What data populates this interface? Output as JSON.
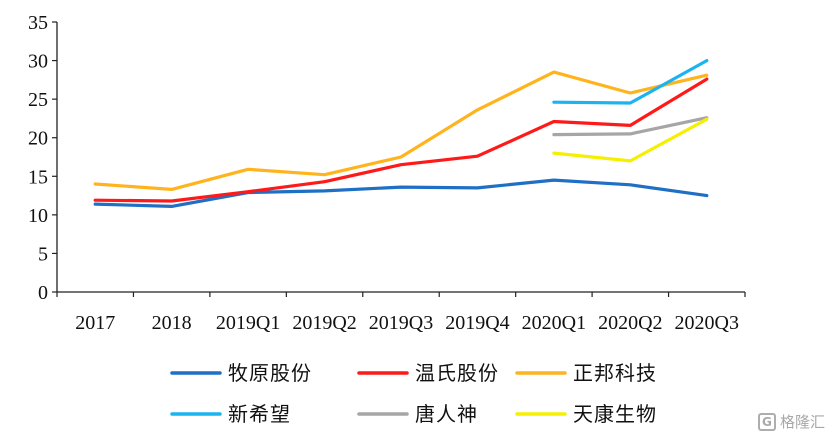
{
  "chart_data": {
    "type": "line",
    "categories": [
      "2017",
      "2018",
      "2019Q1",
      "2019Q2",
      "2019Q3",
      "2019Q4",
      "2020Q1",
      "2020Q2",
      "2020Q3"
    ],
    "ylim": [
      0,
      35
    ],
    "yticks": [
      "0",
      "5",
      "10",
      "15",
      "20",
      "25",
      "30",
      "35"
    ],
    "grid": false,
    "legend_position": "bottom",
    "series": [
      {
        "name": "牧原股份",
        "color": "#1f6fc5",
        "values": [
          11.4,
          11.1,
          12.9,
          13.1,
          13.6,
          13.5,
          14.5,
          13.9,
          12.5
        ]
      },
      {
        "name": "温氏股份",
        "color": "#ff1a1a",
        "values": [
          11.9,
          11.8,
          13.0,
          14.3,
          16.5,
          17.6,
          22.1,
          21.6,
          27.6
        ]
      },
      {
        "name": "正邦科技",
        "color": "#ffb41e",
        "values": [
          14.0,
          13.3,
          15.9,
          15.2,
          17.5,
          23.6,
          28.5,
          25.8,
          28.1
        ]
      },
      {
        "name": "新希望",
        "color": "#1ab4f0",
        "values": [
          null,
          null,
          null,
          null,
          null,
          null,
          24.6,
          24.5,
          30.0
        ]
      },
      {
        "name": "唐人神",
        "color": "#a6a6a6",
        "values": [
          null,
          null,
          null,
          null,
          null,
          null,
          20.4,
          20.5,
          22.6
        ]
      },
      {
        "name": "天康生物",
        "color": "#f5f000",
        "values": [
          null,
          null,
          null,
          null,
          null,
          null,
          18.0,
          17.0,
          22.4
        ]
      }
    ]
  },
  "watermark": {
    "text": "格隆汇",
    "icon": "G"
  }
}
